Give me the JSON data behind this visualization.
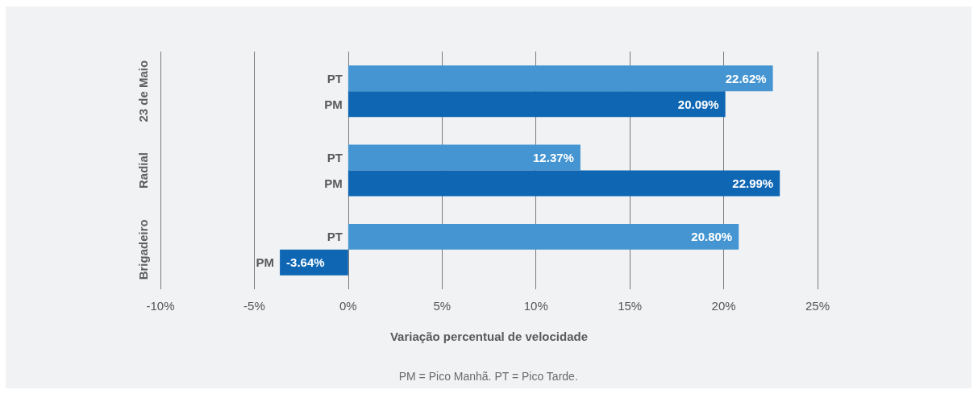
{
  "chart_data": {
    "type": "bar",
    "orientation": "horizontal",
    "categories": [
      "23 de Maio",
      "Radial",
      "Brigadeiro"
    ],
    "series": [
      {
        "name": "PT",
        "color": "#4495d1",
        "values": [
          22.62,
          12.37,
          20.8
        ],
        "value_labels": [
          "22.62%",
          "12.37%",
          "20.80%"
        ]
      },
      {
        "name": "PM",
        "color": "#0f67b4",
        "values": [
          20.09,
          22.99,
          -3.64
        ],
        "value_labels": [
          "20.09%",
          "22.99%",
          "-3.64%"
        ]
      }
    ],
    "xlabel": "Variação percentual de velocidade",
    "xlim": [
      -10,
      25
    ],
    "xticks": [
      {
        "value": -10,
        "label": "-10%"
      },
      {
        "value": -5,
        "label": "-5%"
      },
      {
        "value": 0,
        "label": "0%"
      },
      {
        "value": 5,
        "label": "5%"
      },
      {
        "value": 10,
        "label": "10%"
      },
      {
        "value": 15,
        "label": "15%"
      },
      {
        "value": 20,
        "label": "20%"
      },
      {
        "value": 25,
        "label": "25%"
      }
    ],
    "grid": "x",
    "annotations": [
      "PM = Pico Manhã. PT = Pico Tarde."
    ]
  }
}
